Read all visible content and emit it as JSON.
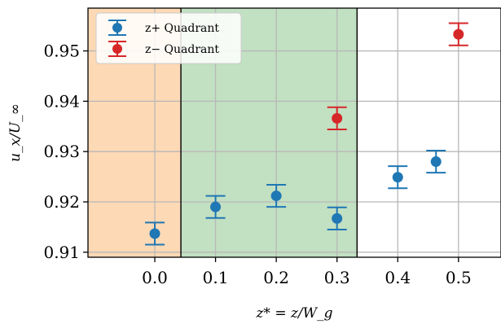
{
  "chart_data": {
    "type": "scatter",
    "title": "",
    "xlabel": "z* = z/W_g",
    "ylabel": "u_x/U_∞",
    "xlim": [
      -0.11,
      0.57
    ],
    "ylim": [
      0.909,
      0.9585
    ],
    "x_ticks": [
      0.0,
      0.1,
      0.2,
      0.3,
      0.4,
      0.5
    ],
    "x_tick_labels": [
      "0.0",
      "0.1",
      "0.2",
      "0.3",
      "0.4",
      "0.5"
    ],
    "y_ticks": [
      0.91,
      0.92,
      0.93,
      0.94,
      0.95
    ],
    "y_tick_labels": [
      "0.91",
      "0.92",
      "0.93",
      "0.94",
      "0.95"
    ],
    "grid": true,
    "legend_position": "top-left",
    "shaded_regions": [
      {
        "x": [
          -0.11,
          0.043
        ],
        "color": "#fdd9b5"
      },
      {
        "x": [
          0.043,
          0.333
        ],
        "color": "#c2e0c2"
      }
    ],
    "vertical_lines": [
      0.043,
      0.333
    ],
    "series": [
      {
        "name": "z+ Quadrant",
        "color": "#1f77b4",
        "points": [
          {
            "x": 0.0,
            "y": 0.9137,
            "err": 0.0022
          },
          {
            "x": 0.1,
            "y": 0.919,
            "err": 0.0022
          },
          {
            "x": 0.2,
            "y": 0.9212,
            "err": 0.0022
          },
          {
            "x": 0.3,
            "y": 0.9167,
            "err": 0.0022
          },
          {
            "x": 0.4,
            "y": 0.9249,
            "err": 0.0022
          },
          {
            "x": 0.463,
            "y": 0.928,
            "err": 0.0022
          }
        ]
      },
      {
        "name": "z− Quadrant",
        "color": "#d62728",
        "points": [
          {
            "x": 0.3,
            "y": 0.9366,
            "err": 0.0022
          },
          {
            "x": 0.5,
            "y": 0.9533,
            "err": 0.0022
          }
        ]
      }
    ]
  }
}
